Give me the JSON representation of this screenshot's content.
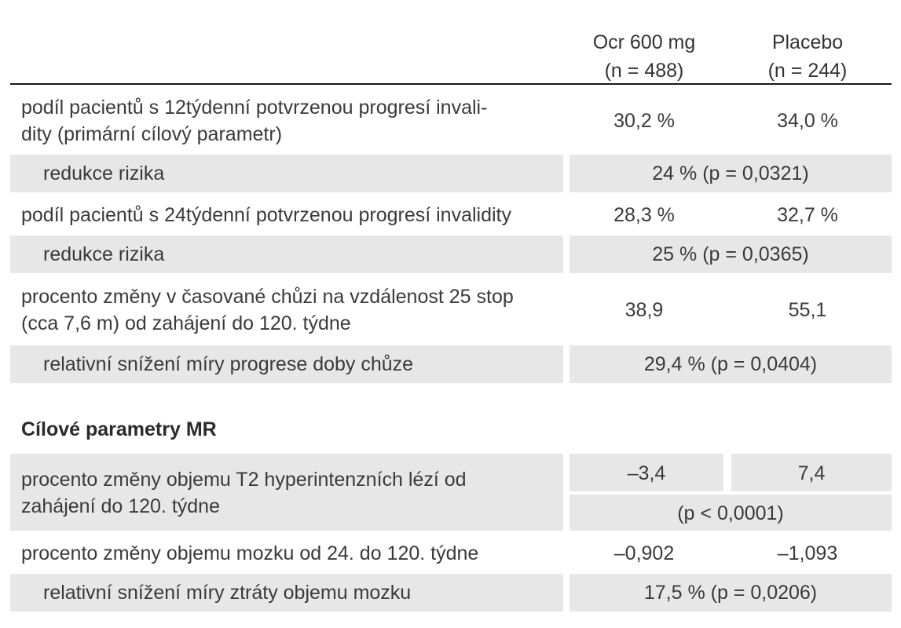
{
  "header": {
    "ocr_line1": "Ocr 600 mg",
    "ocr_line2": "(n = 488)",
    "placebo_line1": "Placebo",
    "placebo_line2": "(n = 244)"
  },
  "rows": {
    "r1": {
      "label_line1": "podíl pacientů s 12týdenní potvrzenou progresí invali-",
      "label_line2": "dity (primární cílový parametr)",
      "ocr": "30,2 %",
      "placebo": "34,0 %"
    },
    "r2": {
      "label": "redukce rizika",
      "value": "24 % (p = 0,0321)"
    },
    "r3": {
      "label": "podíl pacientů s 24týdenní potvrzenou progresí invalidity",
      "ocr": "28,3 %",
      "placebo": "32,7 %"
    },
    "r4": {
      "label": "redukce rizika",
      "value": "25 % (p = 0,0365)"
    },
    "r5": {
      "label_line1": "procento změny v časované chůzi na vzdálenost 25 stop",
      "label_line2": "(cca 7,6 m) od zahájení do 120. týdne",
      "ocr": "38,9",
      "placebo": "55,1"
    },
    "r6": {
      "label": "relativní snížení míry progrese doby chůze",
      "value": "29,4 % (p = 0,0404)"
    }
  },
  "mr_section": {
    "title": "Cílové parametry MR",
    "r7": {
      "label_line1": "procento změny objemu T2 hyperintenzních lézí od",
      "label_line2": "zahájení do 120. týdne",
      "ocr": "–3,4",
      "placebo": "7,4",
      "p_value": "(p < 0,0001)"
    },
    "r8": {
      "label": "procento změny objemu mozku od 24. do 120. týdne",
      "ocr": "–0,902",
      "placebo": "–1,093"
    },
    "r9": {
      "label": "relativní snížení míry ztráty objemu mozku",
      "value": "17,5 % (p = 0,0206)"
    }
  }
}
